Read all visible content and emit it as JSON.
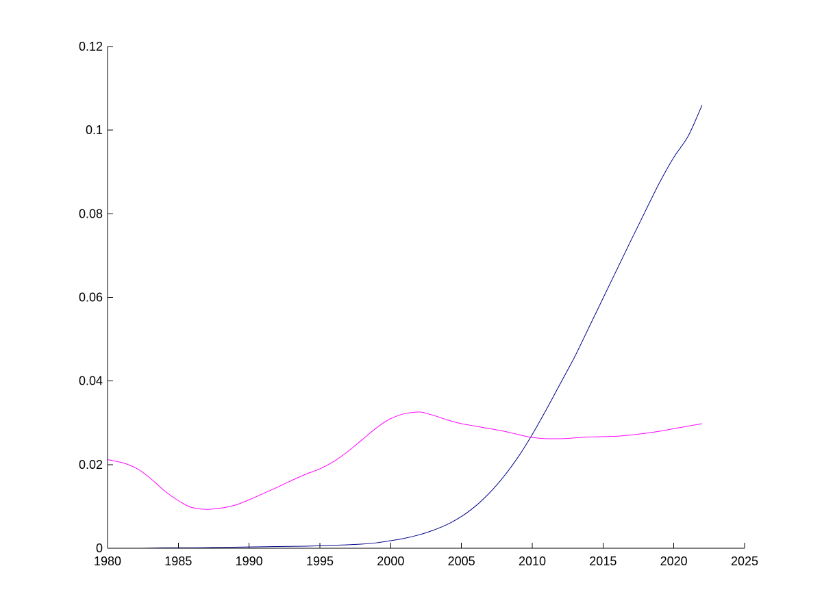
{
  "chart_data": {
    "type": "line",
    "title": "",
    "xlabel": "",
    "ylabel": "",
    "xlim": [
      1980,
      2025
    ],
    "ylim": [
      0,
      0.12
    ],
    "x_ticks": [
      "1980",
      "1985",
      "1990",
      "1995",
      "2000",
      "2005",
      "2010",
      "2015",
      "2020",
      "2025"
    ],
    "y_ticks": [
      "0",
      "0.02",
      "0.04",
      "0.06",
      "0.08",
      "0.1",
      "0.12"
    ],
    "grid": false,
    "legend": "none",
    "series": [
      {
        "color": "#00008b",
        "x": [
          1980,
          1982,
          1984,
          1986,
          1988,
          1990,
          1992,
          1994,
          1996,
          1998,
          1999,
          2000,
          2001,
          2002,
          2003,
          2004,
          2005,
          2006,
          2007,
          2008,
          2009,
          2010,
          2011,
          2012,
          2013,
          2014,
          2015,
          2016,
          2017,
          2018,
          2019,
          2020,
          2021,
          2022
        ],
        "y": [
          0,
          0,
          0.0001,
          0.0001,
          0.0002,
          0.0003,
          0.0004,
          0.0005,
          0.0007,
          0.001,
          0.0013,
          0.0018,
          0.0024,
          0.0032,
          0.0043,
          0.0057,
          0.0076,
          0.0101,
          0.0133,
          0.0172,
          0.0218,
          0.0272,
          0.0332,
          0.0395,
          0.0458,
          0.0528,
          0.0598,
          0.0668,
          0.0738,
          0.0807,
          0.0875,
          0.0935,
          0.0985,
          0.106
        ]
      },
      {
        "color": "#ff00ff",
        "x": [
          1980,
          1981,
          1982,
          1983,
          1984,
          1985,
          1986,
          1987,
          1988,
          1989,
          1990,
          1991,
          1992,
          1993,
          1994,
          1995,
          1996,
          1997,
          1998,
          1999,
          2000,
          2001,
          2002,
          2003,
          2004,
          2005,
          2006,
          2007,
          2008,
          2009,
          2010,
          2011,
          2012,
          2013,
          2014,
          2015,
          2016,
          2017,
          2018,
          2019,
          2020,
          2021,
          2022
        ],
        "y": [
          0.0212,
          0.0205,
          0.0192,
          0.0168,
          0.0138,
          0.0114,
          0.0097,
          0.0093,
          0.0096,
          0.0103,
          0.0116,
          0.0131,
          0.0146,
          0.0162,
          0.0177,
          0.019,
          0.0208,
          0.0232,
          0.026,
          0.0288,
          0.031,
          0.0322,
          0.0326,
          0.0318,
          0.0307,
          0.0298,
          0.0292,
          0.0286,
          0.028,
          0.0272,
          0.0265,
          0.0262,
          0.0262,
          0.0264,
          0.0266,
          0.0267,
          0.0268,
          0.0271,
          0.0275,
          0.028,
          0.0286,
          0.0292,
          0.0298
        ]
      }
    ]
  }
}
